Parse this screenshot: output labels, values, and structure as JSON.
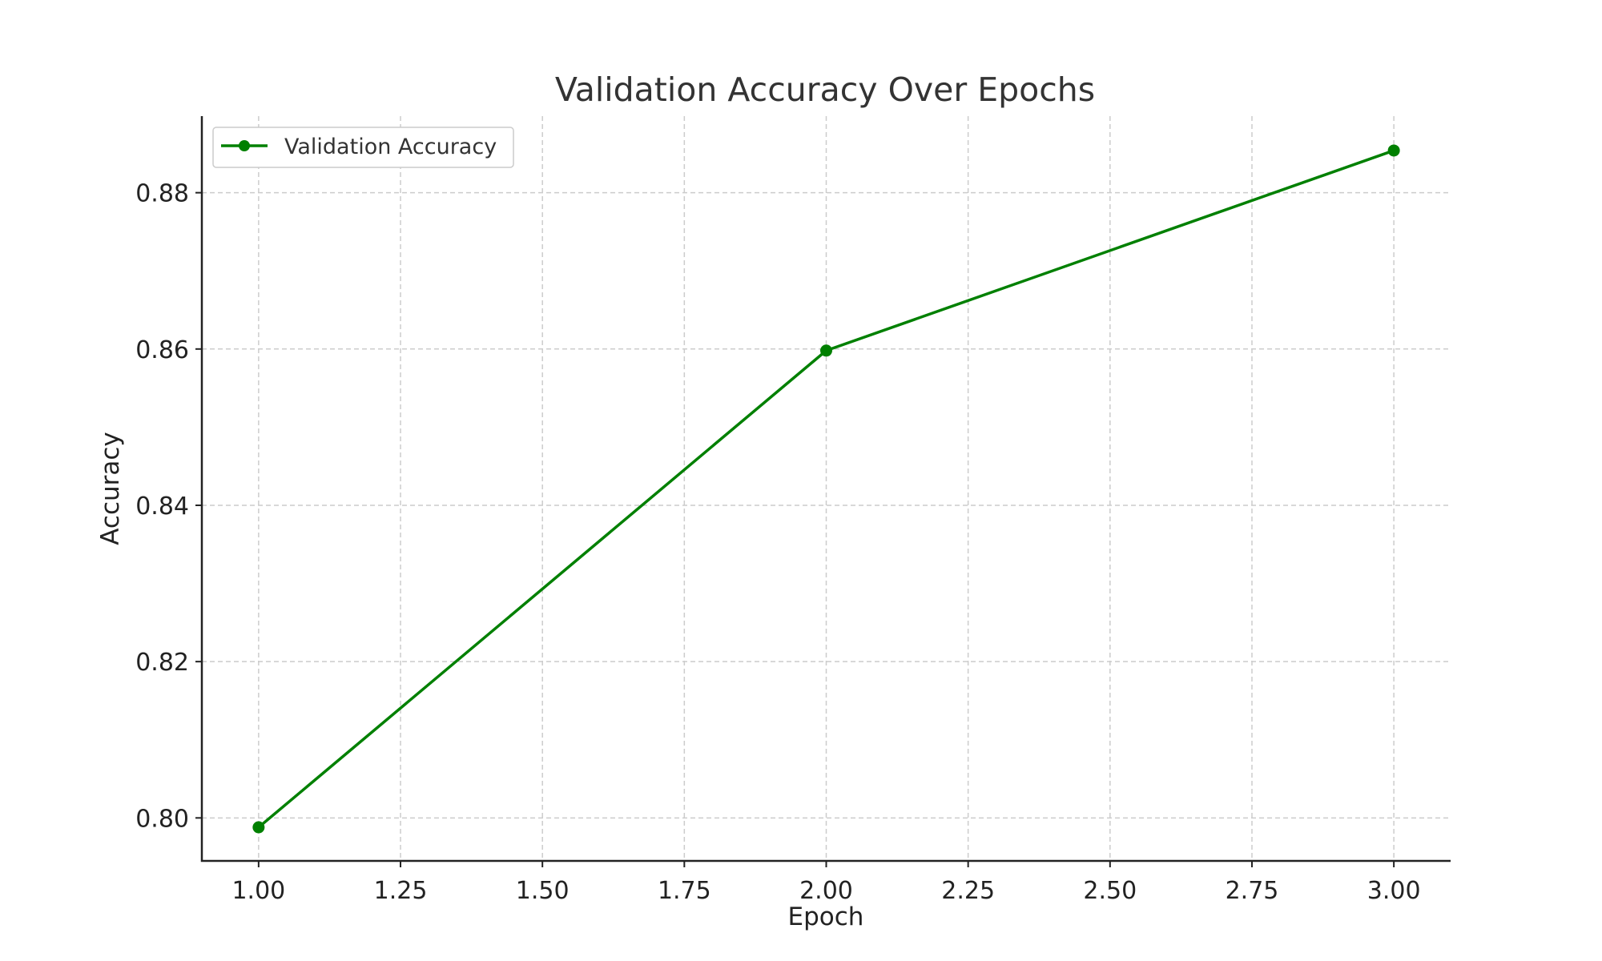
{
  "chart_data": {
    "type": "line",
    "title": "Validation Accuracy Over Epochs",
    "xlabel": "Epoch",
    "ylabel": "Accuracy",
    "xlim": [
      0.9,
      3.1
    ],
    "ylim": [
      0.7945,
      0.8898
    ],
    "xticks": [
      1.0,
      1.25,
      1.5,
      1.75,
      2.0,
      2.25,
      2.5,
      2.75,
      3.0
    ],
    "xtick_labels": [
      "1.00",
      "1.25",
      "1.50",
      "1.75",
      "2.00",
      "2.25",
      "2.50",
      "2.75",
      "3.00"
    ],
    "yticks": [
      0.8,
      0.82,
      0.84,
      0.86,
      0.88
    ],
    "ytick_labels": [
      "0.80",
      "0.82",
      "0.84",
      "0.86",
      "0.88"
    ],
    "grid": true,
    "legend_position": "top-left",
    "series": [
      {
        "name": "Validation Accuracy",
        "color": "#008000",
        "marker": "circle",
        "x": [
          1,
          2,
          3
        ],
        "y": [
          0.7988,
          0.8598,
          0.8854
        ]
      }
    ]
  }
}
